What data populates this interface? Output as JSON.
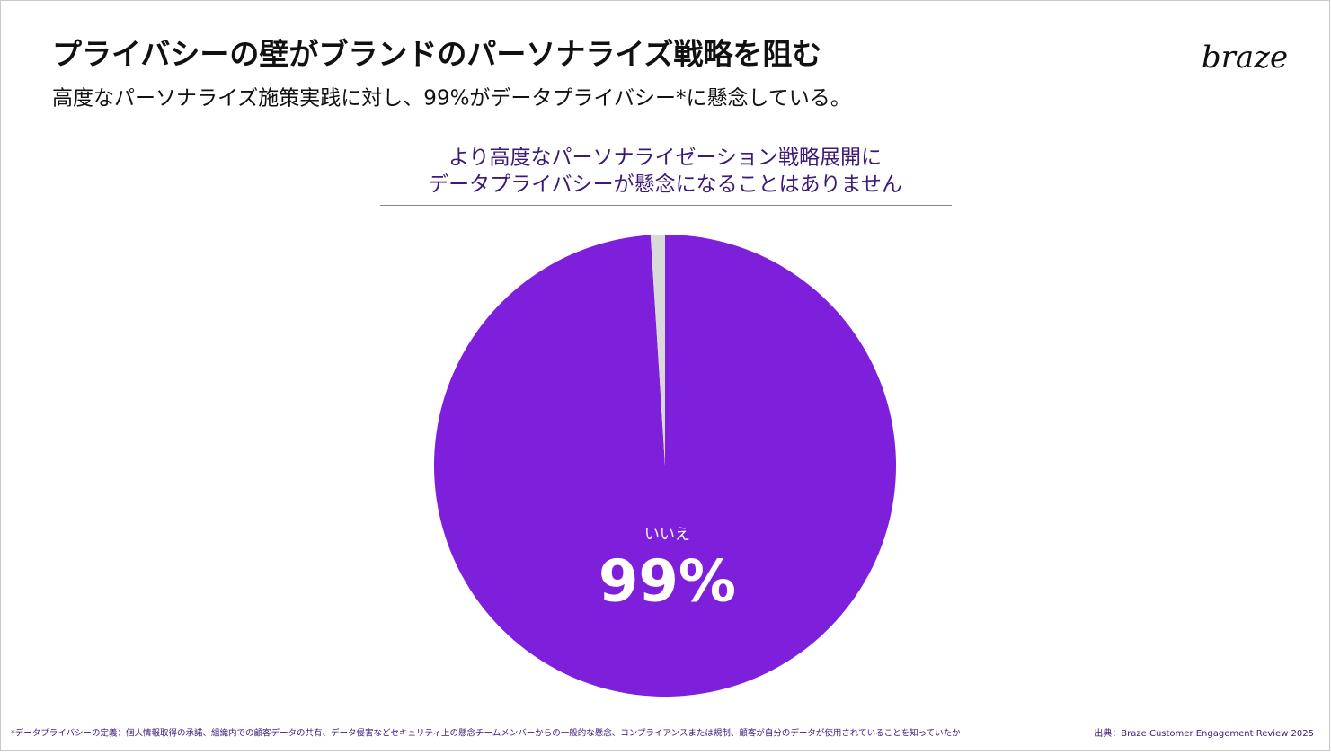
{
  "slide": {
    "title": "プライバシーの壁がブランドのパーソナライズ戦略を阻む",
    "subtitle": "高度なパーソナライズ施策実践に対し、99%がデータプライバシー*に懸念している。",
    "logo": "braze",
    "footnote": "*データプライバシーの定義：個人情報取得の承諾、組織内での顧客データの共有、データ侵害などセキュリティ上の懸念チームメンバーからの一般的な懸念、コンプライアンスまたは規制、顧客が自分のデータが使用されていることを知っていたか",
    "source": "出典：Braze Customer Engagement Review 2025"
  },
  "chart_data": {
    "type": "pie",
    "title": [
      "より高度なパーソナライゼーション戦略展開に",
      "データプライバシーが懸念になることはありません"
    ],
    "categories": [
      "いいえ",
      null
    ],
    "values": [
      99,
      1
    ],
    "value_labels": [
      "99%",
      null
    ],
    "colors": [
      "#7e1fdc",
      "#d9d9d9"
    ]
  }
}
